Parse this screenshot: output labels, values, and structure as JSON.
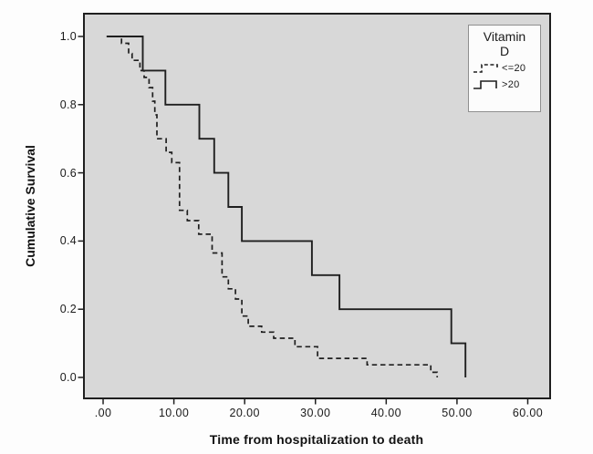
{
  "chart_data": {
    "type": "line",
    "subtype": "kaplan_meier_step_curves",
    "title": "",
    "xlabel": "Time from hospitalization to death",
    "ylabel": "Cumulative Survival",
    "xlim": [
      -2.71,
      63.16
    ],
    "ylim": [
      -0.0615,
      1.0668
    ],
    "grid": false,
    "plot_bg_color": "#d8d8d8",
    "line_color": "#1f1f1f",
    "xticks": [
      0,
      10,
      20,
      30,
      40,
      50,
      60
    ],
    "xtick_labels": [
      ".00",
      "10.00",
      "20.00",
      "30.00",
      "40.00",
      "50.00",
      "60.00"
    ],
    "yticks": [
      1.0,
      0.8,
      0.6,
      0.4,
      0.2,
      0.0
    ],
    "ytick_labels": [
      "1.0",
      "0.8",
      "0.6",
      "0.4",
      "0.2",
      "0.0"
    ],
    "legend": {
      "position": "top-right",
      "title": "Vitamin D",
      "title_lines": [
        "Vitamin",
        "D"
      ],
      "entries": [
        {
          "label": "<=20",
          "style": "dashed"
        },
        {
          "label": ">20",
          "style": "solid"
        }
      ]
    },
    "series": [
      {
        "name": "Vitamin D <=20",
        "style": "dashed",
        "points": [
          [
            0.5,
            1.0
          ],
          [
            2.6,
            0.98
          ],
          [
            3.6,
            0.95
          ],
          [
            4.1,
            0.93
          ],
          [
            5.2,
            0.9
          ],
          [
            5.8,
            0.88
          ],
          [
            6.5,
            0.85
          ],
          [
            7.0,
            0.81
          ],
          [
            7.3,
            0.77
          ],
          [
            7.6,
            0.7
          ],
          [
            8.9,
            0.66
          ],
          [
            9.7,
            0.63
          ],
          [
            10.8,
            0.49
          ],
          [
            11.9,
            0.46
          ],
          [
            13.5,
            0.42
          ],
          [
            15.4,
            0.365
          ],
          [
            16.8,
            0.295
          ],
          [
            17.7,
            0.26
          ],
          [
            18.7,
            0.23
          ],
          [
            19.6,
            0.18
          ],
          [
            20.5,
            0.15
          ],
          [
            22.4,
            0.133
          ],
          [
            24.1,
            0.115
          ],
          [
            27.1,
            0.09
          ],
          [
            30.3,
            0.056
          ],
          [
            37.3,
            0.037
          ],
          [
            46.3,
            0.015
          ],
          [
            47.2,
            0.0
          ]
        ]
      },
      {
        "name": "Vitamin D >20",
        "style": "solid",
        "points": [
          [
            0.5,
            1.0
          ],
          [
            5.6,
            0.9
          ],
          [
            8.8,
            0.8
          ],
          [
            13.6,
            0.7
          ],
          [
            15.7,
            0.6
          ],
          [
            17.7,
            0.5
          ],
          [
            19.6,
            0.4
          ],
          [
            29.5,
            0.3
          ],
          [
            33.4,
            0.2
          ],
          [
            49.2,
            0.1
          ],
          [
            51.2,
            0.0
          ]
        ]
      }
    ]
  }
}
